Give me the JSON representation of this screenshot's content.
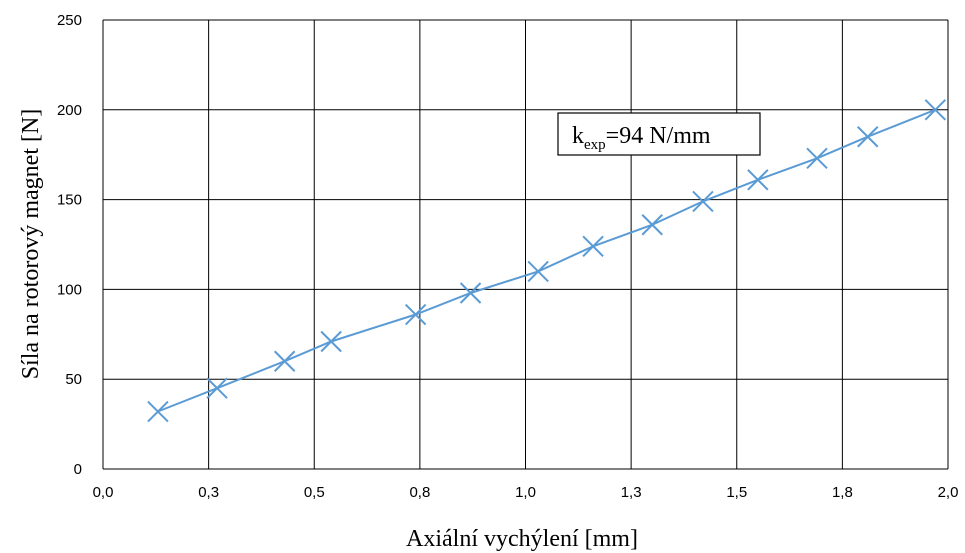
{
  "chart_data": {
    "type": "line",
    "xlabel": "Axiální vychýlení [mm]",
    "ylabel": "Síla na rotorový magnet [N]",
    "xlim": [
      0.0,
      2.0
    ],
    "ylim": [
      0,
      250
    ],
    "x_tick_labels": [
      "0,0",
      "0,3",
      "0,5",
      "0,8",
      "1,0",
      "1,3",
      "1,5",
      "1,8",
      "2,0"
    ],
    "y_tick_labels": [
      "0",
      "50",
      "100",
      "150",
      "200",
      "250"
    ],
    "grid": true,
    "legend": "none",
    "marker": "x",
    "color": "#5b9bd5",
    "series": [
      {
        "x": [
          0.13,
          0.27,
          0.43,
          0.54,
          0.74,
          0.87,
          1.03,
          1.16,
          1.3,
          1.42,
          1.55,
          1.69,
          1.81,
          1.97
        ],
        "y": [
          32,
          45,
          60,
          71,
          86,
          98,
          110,
          124,
          136,
          149,
          161,
          173,
          185,
          200
        ]
      }
    ],
    "annotation": {
      "prefix": "k",
      "subscript": "exp",
      "suffix": "=94 N/mm"
    }
  }
}
